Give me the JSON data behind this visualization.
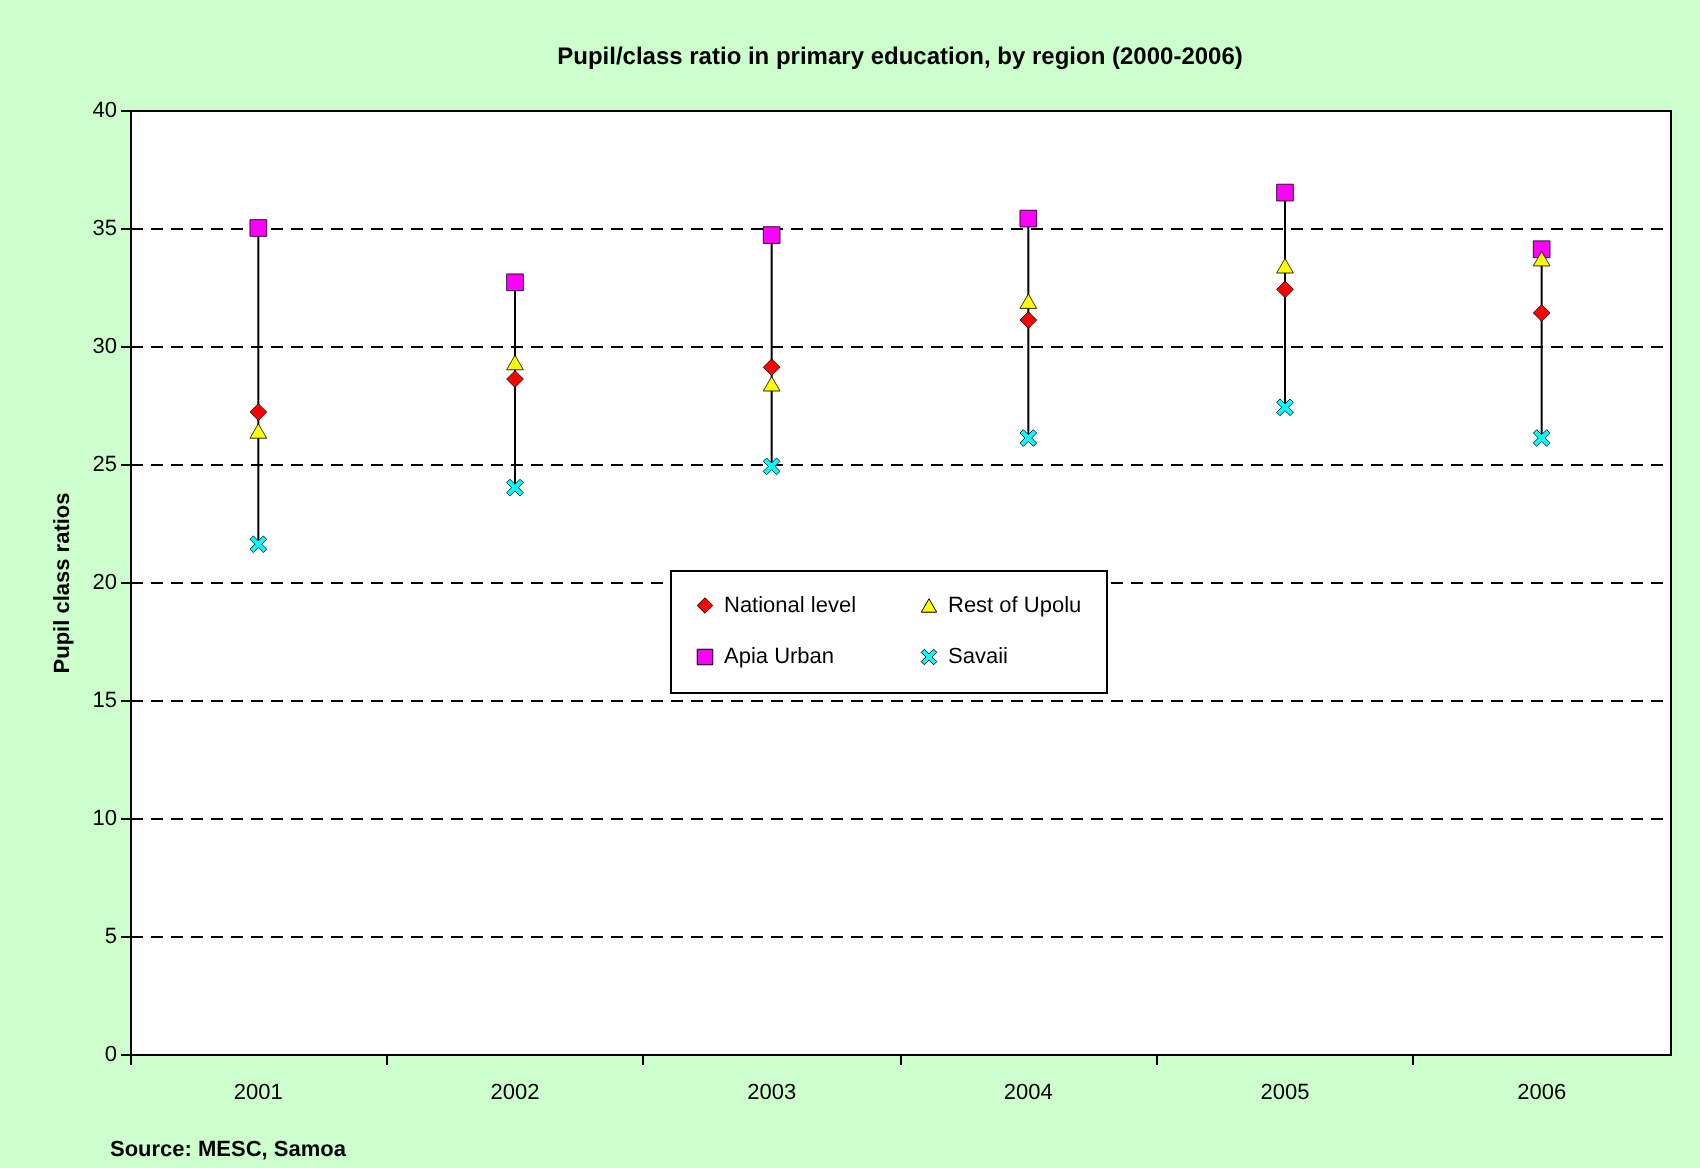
{
  "chart_data": {
    "type": "scatter",
    "title": "Pupil/class ratio in primary education, by region (2000-2006)",
    "ylabel": "Pupil class ratios",
    "categories": [
      "2001",
      "2002",
      "2003",
      "2004",
      "2005",
      "2006"
    ],
    "series": [
      {
        "name": "National level",
        "color": "#ff0000",
        "marker": "diamond",
        "values": [
          27.2,
          28.6,
          29.1,
          31.1,
          32.4,
          31.4
        ]
      },
      {
        "name": "Apia Urban",
        "color": "#ff00ff",
        "marker": "square",
        "values": [
          35.0,
          32.7,
          34.7,
          35.4,
          36.5,
          34.1
        ]
      },
      {
        "name": "Rest of Upolu",
        "color": "#ffff00",
        "marker": "triangle",
        "values": [
          26.4,
          29.3,
          28.4,
          31.9,
          33.4,
          33.7
        ]
      },
      {
        "name": "Savaii",
        "color": "#00ffff",
        "marker": "cross",
        "values": [
          21.6,
          24.0,
          24.9,
          26.1,
          27.4,
          26.1
        ]
      }
    ],
    "ylim": [
      0,
      40
    ],
    "yticks": [
      0,
      5,
      10,
      15,
      20,
      25,
      30,
      35,
      40
    ],
    "grid": "y",
    "legend": "center",
    "annotations": [
      "Source: MESC, Samoa"
    ]
  }
}
